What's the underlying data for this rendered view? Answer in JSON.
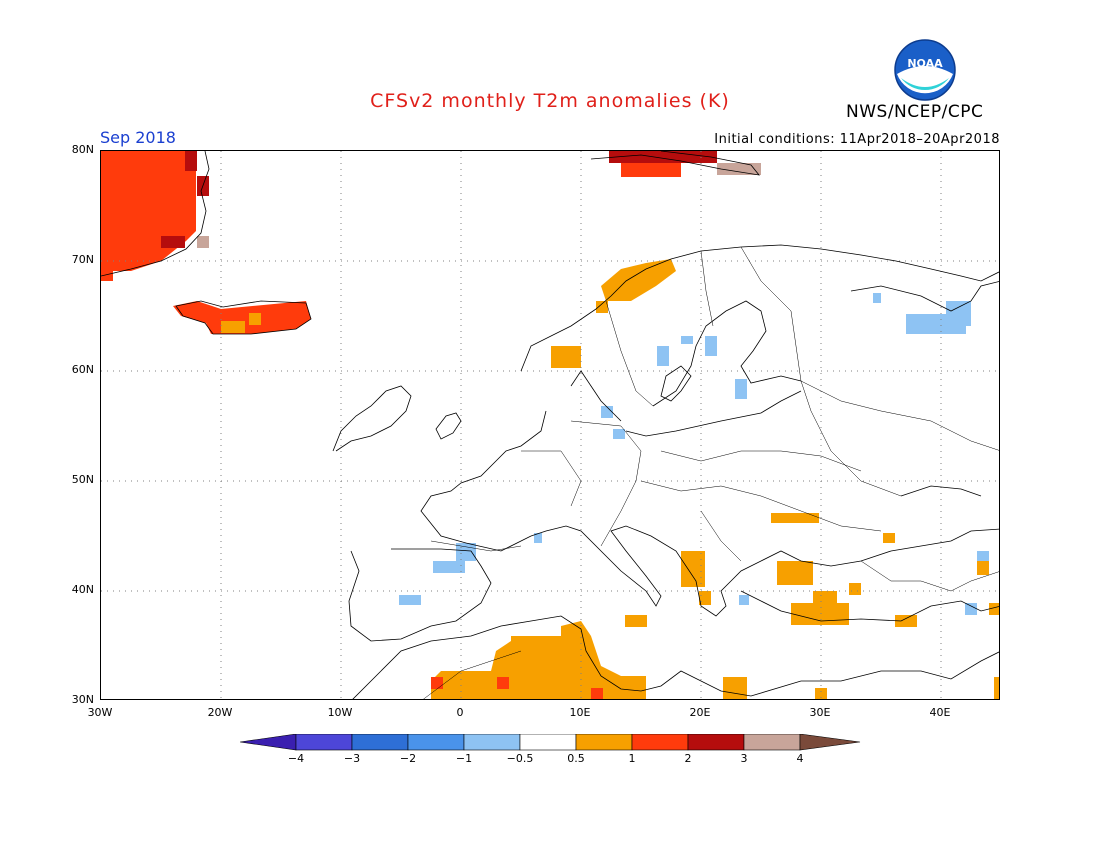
{
  "title": "CFSv2 monthly T2m anomalies (K)",
  "agency": "NWS/NCEP/CPC",
  "logo_text": "NOAA",
  "month_label": "Sep 2018",
  "initial_conditions": "Initial conditions: 11Apr2018–20Apr2018",
  "lat_labels": [
    "80N",
    "70N",
    "60N",
    "50N",
    "40N",
    "30N"
  ],
  "lon_labels": [
    "30W",
    "20W",
    "10W",
    "0",
    "10E",
    "20E",
    "30E",
    "40E"
  ],
  "colorbar": {
    "ticks": [
      "−4",
      "−3",
      "−2",
      "−1",
      "−0.5",
      "0.5",
      "1",
      "2",
      "3",
      "4"
    ],
    "colors": [
      "#3a1fb0",
      "#4d46d8",
      "#2e6fd6",
      "#4a93ea",
      "#8ec3f3",
      "#ffffff",
      "#f7a000",
      "#ff3b0c",
      "#b50d0d",
      "#c8a59a",
      "#7a4a3a"
    ]
  },
  "map": {
    "lon_range": [
      -30,
      45
    ],
    "lat_range": [
      30,
      80
    ],
    "anomaly_regions": [
      {
        "name": "Greenland east coast",
        "value": 1.5
      },
      {
        "name": "Iceland",
        "value": 1.5
      },
      {
        "name": "Svalbard",
        "value": 2.5
      },
      {
        "name": "Norway coast",
        "value": 0.75
      },
      {
        "name": "North Africa / Sahara",
        "value": 0.75
      },
      {
        "name": "Balkans / Greece",
        "value": 0.75
      },
      {
        "name": "Turkey",
        "value": 0.75
      },
      {
        "name": "Northern Spain",
        "value": -0.75
      },
      {
        "name": "Kola / White Sea",
        "value": -0.75
      }
    ]
  }
}
